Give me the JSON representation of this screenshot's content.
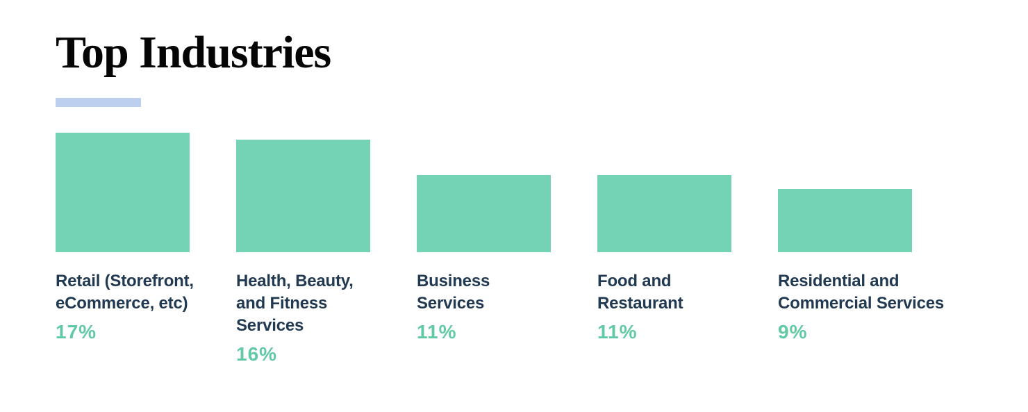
{
  "header": {
    "title": "Top Industries"
  },
  "colors": {
    "bar": "#73d3b4",
    "value_text": "#61c9a4",
    "label_text": "#213a52",
    "title_text": "#050505",
    "accent_underline": "#bccfee",
    "background": "#ffffff"
  },
  "chart_data": {
    "type": "bar",
    "title": "Top Industries",
    "categories": [
      "Retail (Storefront, eCommerce, etc)",
      "Health, Beauty, and Fitness Services",
      "Business Services",
      "Food and Restaurant",
      "Residential and Commercial Services"
    ],
    "values": [
      17,
      16,
      11,
      11,
      9
    ],
    "unit": "%",
    "value_labels": [
      "17%",
      "16%",
      "11%",
      "11%",
      "9%"
    ],
    "ylim": [
      0,
      17
    ],
    "grid": false,
    "legend": false,
    "axes_visible": false,
    "bar_color": "#73d3b4",
    "orientation": "vertical",
    "value_label_position": "below-category-label"
  },
  "industries": [
    {
      "label_display": "Retail (Storefront,\neCommerce, etc)",
      "pct": "17%",
      "value": 17
    },
    {
      "label_display": "Health, Beauty,\nand Fitness\nServices",
      "pct": "16%",
      "value": 16
    },
    {
      "label_display": "Business\nServices",
      "pct": "11%",
      "value": 11
    },
    {
      "label_display": "Food and\nRestaurant",
      "pct": "11%",
      "value": 11
    },
    {
      "label_display": "Residential and\nCommercial Services",
      "pct": "9%",
      "value": 9
    }
  ]
}
